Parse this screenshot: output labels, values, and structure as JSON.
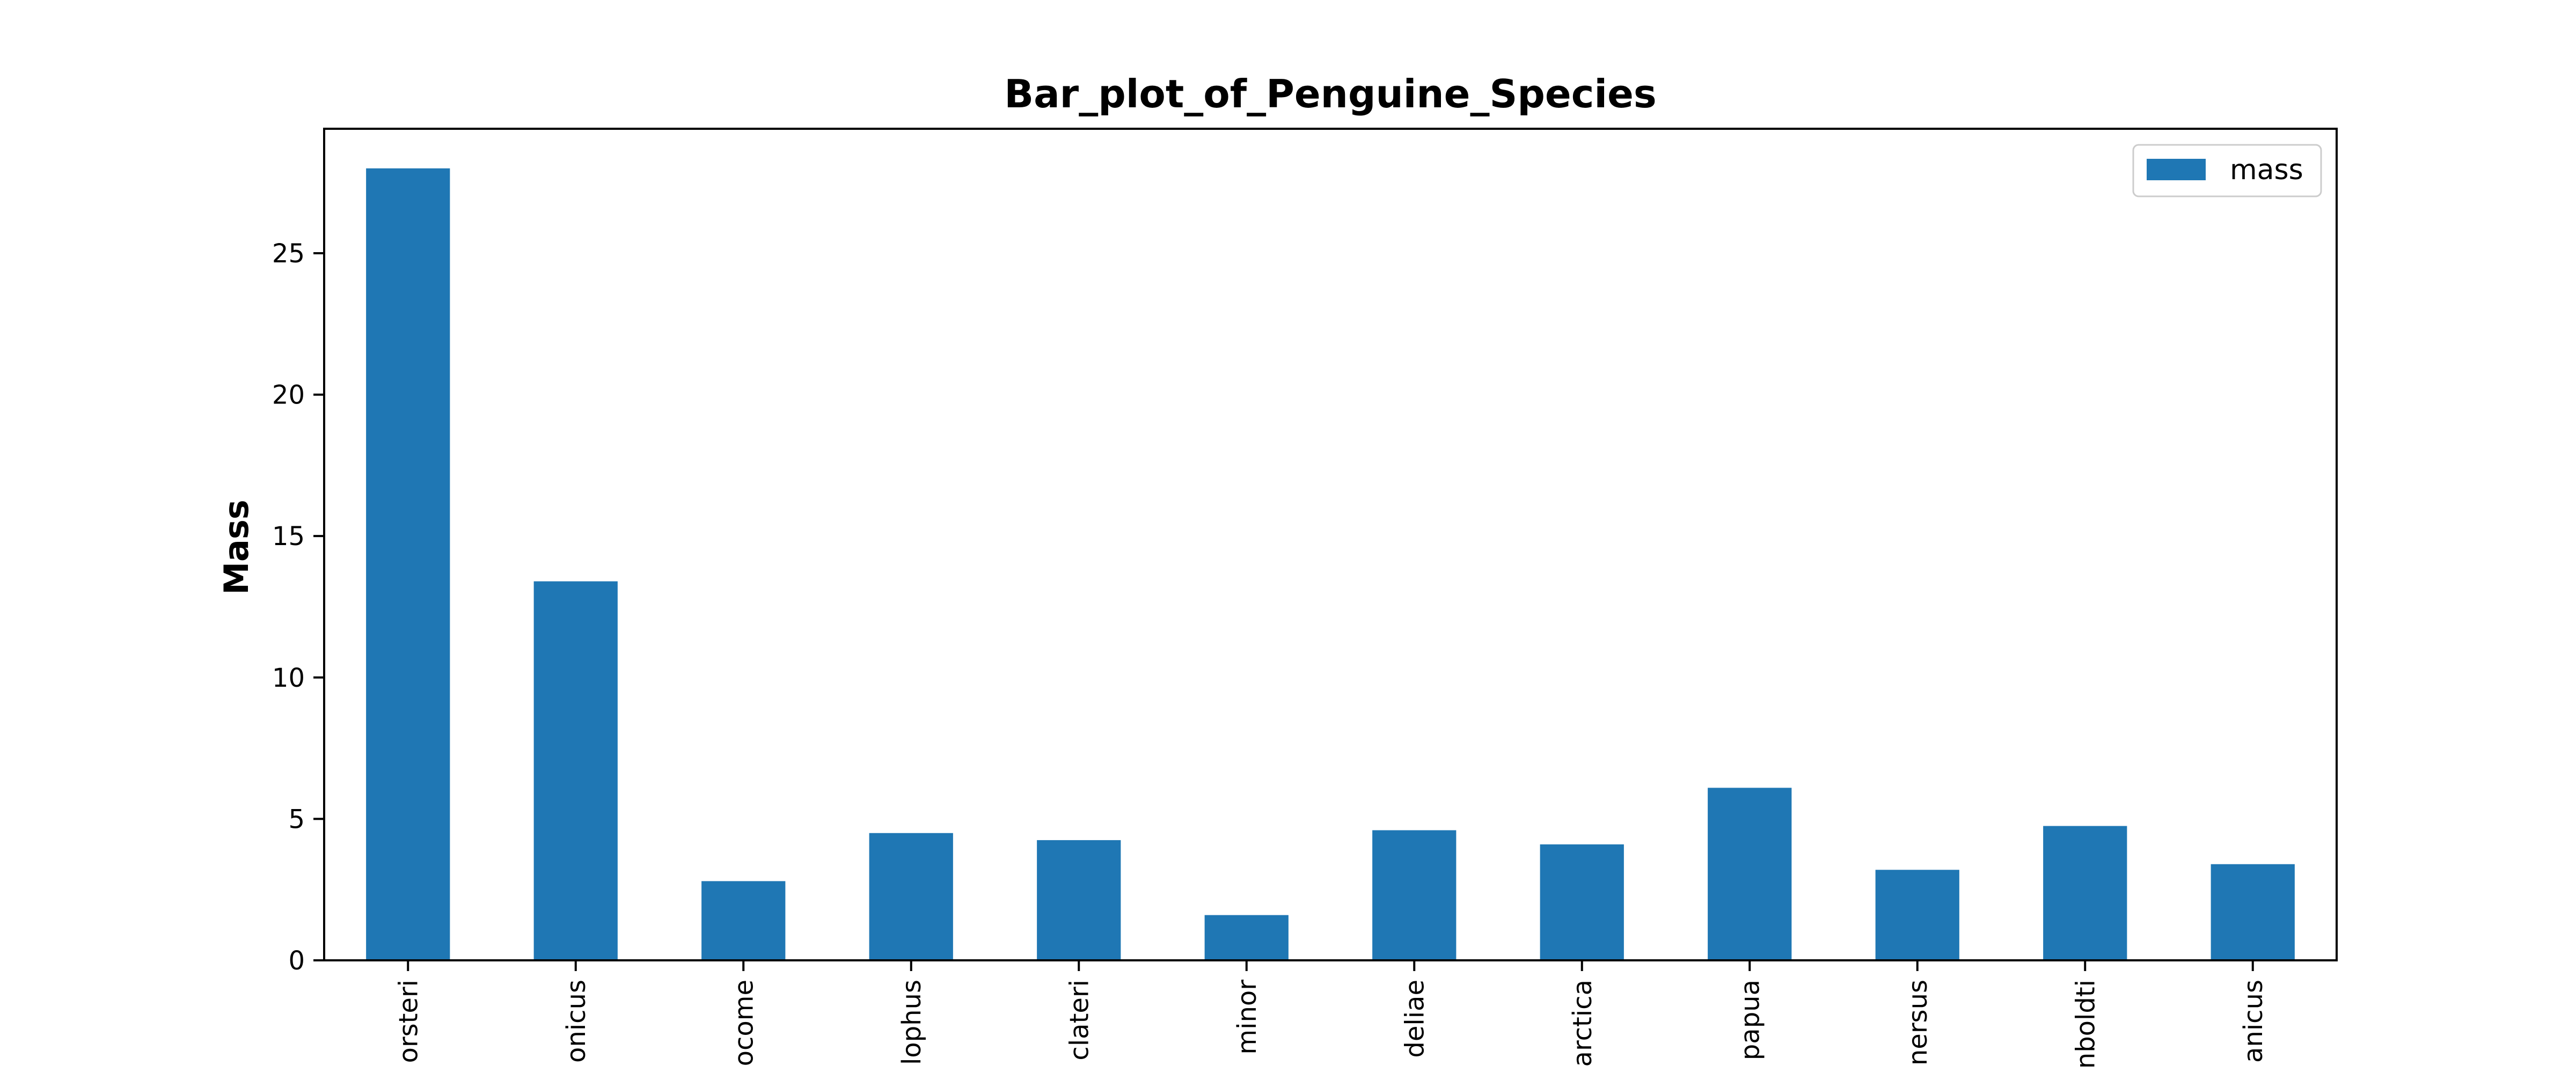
{
  "chart_data": {
    "type": "bar",
    "title": "Bar_plot_of_Penguine_Species",
    "xlabel": "",
    "ylabel": "Mass",
    "categories": [
      "orsteri",
      "onicus",
      "ocome",
      "lophus",
      "clateri",
      "minor",
      "deliae",
      "arctica",
      "papua",
      "nersus",
      "nboldti",
      "anicus"
    ],
    "series": [
      {
        "name": "mass",
        "values": [
          28.0,
          13.4,
          2.8,
          4.5,
          4.25,
          1.6,
          4.6,
          4.1,
          6.1,
          3.2,
          4.75,
          3.4
        ],
        "color": "#1f77b4"
      }
    ],
    "ylim": [
      0,
      29.4
    ],
    "yticks": [
      0,
      5,
      10,
      15,
      20,
      25
    ],
    "grid": false,
    "legend_position": "top-right"
  }
}
